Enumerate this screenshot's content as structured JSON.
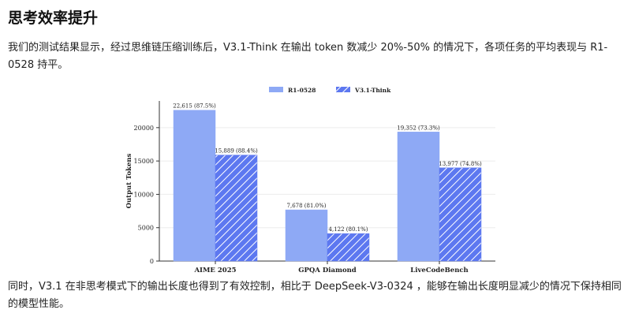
{
  "section": {
    "heading": "思考效率提升",
    "paragraph1": "我们的测试结果显示，经过思维链压缩训练后，V3.1-Think 在输出 token 数减少 20%-50% 的情况下，各项任务的平均表现与 R1-0528 持平。",
    "paragraph2": "同时，V3.1 在非思考模式下的输出长度也得到了有效控制，相比于 DeepSeek-V3-0324 ，能够在输出长度明显减少的情况下保持相同的模型性能。"
  },
  "colors": {
    "r1": "#8ea9f5",
    "v31": "#5d78f0",
    "hatch": "#ffffff"
  },
  "chart_data": {
    "type": "bar",
    "categories": [
      "AIME 2025",
      "GPQA Diamond",
      "LiveCodeBench"
    ],
    "series": [
      {
        "name": "R1-0528",
        "values": [
          22615,
          7678,
          19352
        ],
        "labels": [
          "22,615 (87.5%)",
          "7,678 (81.0%)",
          "19,352 (73.3%)"
        ]
      },
      {
        "name": "V3.1-Think",
        "values": [
          15889,
          4122,
          13977
        ],
        "labels": [
          "15,889 (88.4%)",
          "4,122 (80.1%)",
          "13,977 (74.8%)"
        ]
      }
    ],
    "ylabel": "Output Tokens",
    "xlabel": "",
    "ylim": [
      0,
      24000
    ],
    "yticks": [
      0,
      5000,
      10000,
      15000,
      20000
    ],
    "legend": "top-center",
    "grid": true
  }
}
